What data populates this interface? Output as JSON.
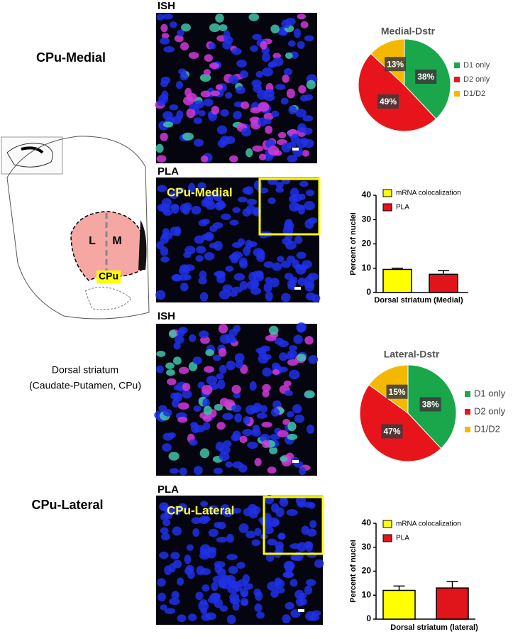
{
  "labels": {
    "cpu_medial": "CPu-Medial",
    "cpu_lateral": "CPu-Lateral",
    "dorsal_striatum_line1": "Dorsal striatum",
    "dorsal_striatum_line2": "(Caudate-Putamen, CPu)",
    "ish_top": "ISH",
    "pla_top": "PLA",
    "ish_bottom": "ISH",
    "pla_bottom": "PLA",
    "inset_medial": "CPu-Medial",
    "inset_lateral": "CPu-Lateral",
    "diagram_l": "L",
    "diagram_m": "M",
    "diagram_cpu": "CPu"
  },
  "chart_data": [
    {
      "type": "pie",
      "title": "Medial-Dstr",
      "categories": [
        "D1 only",
        "D2 only",
        "D1/D2"
      ],
      "values": [
        38,
        49,
        13
      ],
      "value_labels": [
        "38%",
        "49%",
        "13%"
      ],
      "colors": [
        "#1aa64a",
        "#e8141b",
        "#f5b800"
      ]
    },
    {
      "type": "bar",
      "xlabel": "Dorsal striatum (Medial)",
      "ylabel": "Percent of nuclei",
      "ylim": [
        0,
        40
      ],
      "yticks": [
        0,
        10,
        20,
        30,
        40
      ],
      "series": [
        {
          "name": "mRNA colocalization",
          "color": "#ffff00",
          "values": [
            9.5
          ],
          "errors": [
            0.5
          ]
        },
        {
          "name": "PLA",
          "color": "#e0141b",
          "values": [
            7.5
          ],
          "errors": [
            1.5
          ]
        }
      ]
    },
    {
      "type": "pie",
      "title": "Lateral-Dstr",
      "categories": [
        "D1 only",
        "D2 only",
        "D1/D2"
      ],
      "values": [
        38,
        47,
        15
      ],
      "value_labels": [
        "38%",
        "47%",
        "15%"
      ],
      "colors": [
        "#1aa64a",
        "#e8141b",
        "#f5b800"
      ]
    },
    {
      "type": "bar",
      "xlabel": "Dorsal striatum (lateral)",
      "ylabel": "Percent of nuclei",
      "ylim": [
        0,
        40
      ],
      "yticks": [
        0,
        10,
        20,
        30,
        40
      ],
      "series": [
        {
          "name": "mRNA colocalization",
          "color": "#ffff00",
          "values": [
            12
          ],
          "errors": [
            1.8
          ]
        },
        {
          "name": "PLA",
          "color": "#e0141b",
          "values": [
            13
          ],
          "errors": [
            2.7
          ]
        }
      ]
    }
  ]
}
